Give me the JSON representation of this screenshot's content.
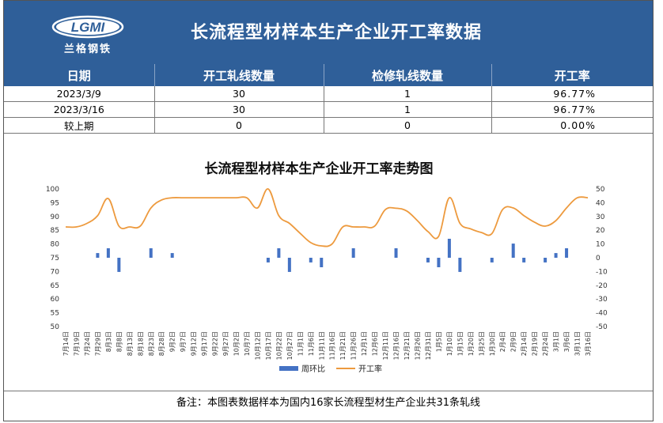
{
  "header": {
    "logo_text": "LGMI",
    "logo_cn": "兰格钢铁",
    "title": "长流程型材样本生产企业开工率数据"
  },
  "table": {
    "columns": [
      "日期",
      "开工轧线数量",
      "检修轧线数量",
      "开工率"
    ],
    "rows": [
      [
        "2023/3/9",
        "30",
        "1",
        "96.77%"
      ],
      [
        "2023/3/16",
        "30",
        "1",
        "96.77%"
      ],
      [
        "较上期",
        "0",
        "0",
        "0.00%"
      ]
    ]
  },
  "colors": {
    "header_bg": "#2f5f99",
    "bar": "#4472c4",
    "line": "#ed9a3e"
  },
  "chart_data": {
    "type": "bar+line",
    "title": "长流程型材样本生产企业开工率走势图",
    "x": [
      "7月14日",
      "7月19日",
      "7月24日",
      "7月29日",
      "8月3日",
      "8月8日",
      "8月13日",
      "8月18日",
      "8月23日",
      "8月28日",
      "9月2日",
      "9月7日",
      "9月12日",
      "9月17日",
      "9月22日",
      "9月27日",
      "10月2日",
      "10月7日",
      "10月12日",
      "10月17日",
      "10月22日",
      "10月27日",
      "11月1日",
      "11月6日",
      "11月11日",
      "11月16日",
      "11月21日",
      "11月26日",
      "12月1日",
      "12月6日",
      "12月11日",
      "12月16日",
      "12月21日",
      "12月26日",
      "12月31日",
      "1月5日",
      "1月10日",
      "1月15日",
      "1月20日",
      "1月25日",
      "1月30日",
      "2月4日",
      "2月9日",
      "2月14日",
      "2月19日",
      "2月24日",
      "3月1日",
      "3月6日",
      "3月11日",
      "3月16日"
    ],
    "y_left": {
      "min": 50,
      "max": 100,
      "ticks": [
        100,
        95,
        90,
        85,
        80,
        75,
        70,
        65,
        60,
        55,
        50
      ]
    },
    "y_right": {
      "min": -50,
      "max": 50,
      "ticks": [
        50,
        40,
        30,
        20,
        10,
        0,
        -10,
        -20,
        -30,
        -40,
        -50
      ]
    },
    "series": [
      {
        "name": "周环比",
        "axis": "right",
        "kind": "bar",
        "values": [
          0,
          0,
          0,
          3.4,
          6.9,
          -10.3,
          0,
          0,
          6.9,
          0,
          3.4,
          0,
          0,
          0,
          0,
          0,
          0,
          0,
          0,
          -3.4,
          6.9,
          -10.3,
          0,
          -3.4,
          -6.9,
          0,
          0,
          6.9,
          0,
          0,
          0,
          6.9,
          0,
          0,
          -3.4,
          -6.9,
          13.8,
          -10.3,
          0,
          0,
          -3.4,
          0,
          10.3,
          -3.4,
          0,
          -3.4,
          3.4,
          6.9,
          0,
          0
        ]
      },
      {
        "name": "开工率",
        "axis": "left",
        "kind": "line",
        "values": [
          86.2,
          86.2,
          87.5,
          90.3,
          96.5,
          86.5,
          86.2,
          86.5,
          93.1,
          96.0,
          96.8,
          96.8,
          96.8,
          96.8,
          96.8,
          96.8,
          96.8,
          96.8,
          93.1,
          100.0,
          90.3,
          87.5,
          83.9,
          80.5,
          79.3,
          80.0,
          86.2,
          86.2,
          86.2,
          86.5,
          92.5,
          93.0,
          92.0,
          88.5,
          84.5,
          82.8,
          96.8,
          87.5,
          85.5,
          84.2,
          83.8,
          92.5,
          93.1,
          90.3,
          87.9,
          86.5,
          88.5,
          93.1,
          96.8,
          96.8
        ]
      }
    ]
  },
  "footer": {
    "note": "备注：本图表数据样本为国内16家长流程型材生产企业共31条轧线"
  }
}
